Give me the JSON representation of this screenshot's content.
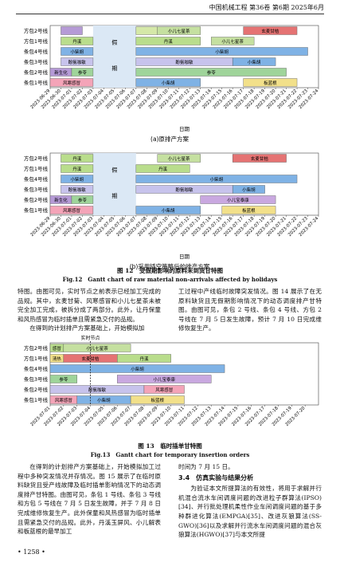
{
  "header": {
    "title": "中国机械工程 第36卷 第6期 2025年6月"
  },
  "figure12": {
    "charts": [
      {
        "type": "gantt",
        "x_label": "日期",
        "caption": "(a)原排产方案",
        "xlim": [
          "2023-06-29",
          "2023-07-24"
        ],
        "xticks": [
          "2023-06-29",
          "2023-06-30",
          "2023-07-01",
          "2023-07-02",
          "2023-07-03",
          "2023-07-04",
          "2023-07-05",
          "2023-07-06",
          "2023-07-07",
          "2023-07-08",
          "2023-07-09",
          "2023-07-10",
          "2023-07-11",
          "2023-07-12",
          "2023-07-13",
          "2023-07-14",
          "2023-07-15",
          "2023-07-16",
          "2023-07-17",
          "2023-07-18",
          "2023-07-19",
          "2023-07-20",
          "2023-07-21",
          "2023-07-22",
          "2023-07-23",
          "2023-07-24"
        ],
        "rows": [
          "方包2号线",
          "方包1号线",
          "条包4号线",
          "条包3号线",
          "条包2号线",
          "条包1号线"
        ],
        "holiday": {
          "text": [
            "假",
            "期"
          ],
          "start": "2023-07-03",
          "end": "2023-07-07"
        },
        "tasks": [
          {
            "row": 0,
            "start": "2023-06-30",
            "end": "2023-07-02",
            "color": "#b59ad6"
          },
          {
            "row": 0,
            "start": "2023-07-07",
            "end": "2023-07-09",
            "color": "#d5e8a8"
          },
          {
            "row": 0,
            "label": "小儿七星茶",
            "start": "2023-07-09",
            "end": "2023-07-13",
            "color": "#c5e0a0"
          },
          {
            "row": 0,
            "label": "玄麦甘桔",
            "start": "2023-07-17",
            "end": "2023-07-22",
            "color": "#e57373"
          },
          {
            "row": 1,
            "label": "丹溪",
            "start": "2023-06-30",
            "end": "2023-07-03",
            "color": "#b9dd8c"
          },
          {
            "row": 1,
            "label": "丹溪",
            "start": "2023-07-07",
            "end": "2023-07-13",
            "color": "#b9dd8c"
          },
          {
            "row": 1,
            "label": "小儿七星茶",
            "start": "2023-07-14",
            "end": "2023-07-18",
            "color": "#c5e0a0"
          },
          {
            "row": 2,
            "label": "小柴胡",
            "start": "2023-06-30",
            "end": "2023-07-03",
            "color": "#7fb2e5"
          },
          {
            "row": 2,
            "label": "小柴胡",
            "start": "2023-07-07",
            "end": "2023-07-23",
            "color": "#7fb2e5"
          },
          {
            "row": 3,
            "label": "酚氨咖敏",
            "start": "2023-06-30",
            "end": "2023-07-03",
            "color": "#c7c3ec"
          },
          {
            "row": 3,
            "label": "酚氨咖敏",
            "start": "2023-07-07",
            "end": "2023-07-16",
            "color": "#c7c3ec"
          },
          {
            "row": 3,
            "label": "小柴胡",
            "start": "2023-07-16",
            "end": "2023-07-20",
            "color": "#7fb2e5"
          },
          {
            "row": 4,
            "label": "新生化",
            "start": "2023-06-29",
            "end": "2023-07-01",
            "color": "#b59ad6"
          },
          {
            "row": 4,
            "label": "参苓",
            "start": "2023-07-01",
            "end": "2023-07-03",
            "color": "#9fd49a"
          },
          {
            "row": 4,
            "label": "参苓",
            "start": "2023-07-07",
            "end": "2023-07-21",
            "color": "#9fd49a"
          },
          {
            "row": 5,
            "label": "风寒感冒",
            "start": "2023-06-29",
            "end": "2023-07-03",
            "color": "#f4a4b8"
          },
          {
            "row": 5,
            "label": "小柴胡",
            "start": "2023-07-07",
            "end": "2023-07-13",
            "color": "#7fb2e5"
          },
          {
            "row": 5,
            "label": "板蓝根",
            "start": "2023-07-17",
            "end": "2023-07-22",
            "color": "#f2e08a"
          }
        ]
      },
      {
        "type": "gantt",
        "x_label": "日期",
        "caption": "(b)采用插空策略后的排产方案",
        "xlim": [
          "2023-06-29",
          "2023-07-24"
        ],
        "xticks": [
          "2023-06-29",
          "2023-06-30",
          "2023-07-01",
          "2023-07-02",
          "2023-07-03",
          "2023-07-04",
          "2023-07-05",
          "2023-07-06",
          "2023-07-07",
          "2023-07-08",
          "2023-07-09",
          "2023-07-10",
          "2023-07-11",
          "2023-07-12",
          "2023-07-13",
          "2023-07-14",
          "2023-07-15",
          "2023-07-16",
          "2023-07-17",
          "2023-07-18",
          "2023-07-19",
          "2023-07-20",
          "2023-07-21",
          "2023-07-22",
          "2023-07-23",
          "2023-07-24"
        ],
        "rows": [
          "方包2号线",
          "方包1号线",
          "条包4号线",
          "条包3号线",
          "条包2号线",
          "条包1号线"
        ],
        "holiday": {
          "text": [
            "假",
            "期"
          ],
          "start": "2023-07-03",
          "end": "2023-07-07"
        },
        "tasks": [
          {
            "row": 0,
            "label": "丹溪",
            "start": "2023-06-30",
            "end": "2023-07-03",
            "color": "#b9dd8c"
          },
          {
            "row": 0,
            "label": "小儿七星茶",
            "start": "2023-07-09",
            "end": "2023-07-13",
            "color": "#c5e0a0"
          },
          {
            "row": 0,
            "label": "玄麦甘桔",
            "start": "2023-07-16",
            "end": "2023-07-21",
            "color": "#e57373"
          },
          {
            "row": 1,
            "label": "丹溪",
            "start": "2023-06-30",
            "end": "2023-07-03",
            "color": "#b9dd8c"
          },
          {
            "row": 1,
            "label": "丹溪",
            "start": "2023-07-07",
            "end": "2023-07-12",
            "color": "#b9dd8c"
          },
          {
            "row": 2,
            "label": "小柴胡",
            "start": "2023-06-30",
            "end": "2023-07-03",
            "color": "#7fb2e5"
          },
          {
            "row": 2,
            "label": "小柴胡",
            "start": "2023-07-07",
            "end": "2023-07-22",
            "color": "#7fb2e5"
          },
          {
            "row": 3,
            "label": "酚氨咖敏",
            "start": "2023-06-30",
            "end": "2023-07-03",
            "color": "#c7c3ec"
          },
          {
            "row": 3,
            "label": "酚氨咖敏",
            "start": "2023-07-07",
            "end": "2023-07-16",
            "color": "#c7c3ec"
          },
          {
            "row": 3,
            "label": "小柴胡",
            "start": "2023-07-16",
            "end": "2023-07-19",
            "color": "#7fb2e5"
          },
          {
            "row": 4,
            "label": "新生化",
            "start": "2023-06-29",
            "end": "2023-07-01",
            "color": "#b59ad6"
          },
          {
            "row": 4,
            "label": "参苓",
            "start": "2023-07-01",
            "end": "2023-07-03",
            "color": "#9fd49a"
          },
          {
            "row": 4,
            "label": "小儿宝泰康",
            "start": "2023-07-13",
            "end": "2023-07-20",
            "color": "#c9a8e0"
          },
          {
            "row": 5,
            "label": "风寒感冒",
            "start": "2023-06-29",
            "end": "2023-07-03",
            "color": "#f4a4b8"
          },
          {
            "row": 5,
            "label": "小柴胡",
            "start": "2023-07-07",
            "end": "2023-07-13",
            "color": "#7fb2e5"
          },
          {
            "row": 5,
            "label": "板蓝根",
            "start": "2023-07-15",
            "end": "2023-07-20",
            "color": "#f2e08a"
          }
        ]
      }
    ],
    "caption_cn": "图 12　受假期影响的原料未到货甘特图",
    "caption_en": "Fig.12　Gantt chart of raw material non-arrivals affected by holidays"
  },
  "text1": {
    "left": [
      "特图。由图可见，实时节点之前表示已经加工完成的品规。其中，玄麦甘菊、风寒感冒和小儿七星茶未被完全加工完成，被拆分成了两部分。此外，让丹保童和风热感冒为临时插单且需紧急交付的品规。",
      "在得到的计划排产方案基础上，开始模拟加"
    ],
    "right": [
      "工过程中产线临时故障突发情况。图 14 展示了在无原料缺货且无假期影响情况下的动态调度排产甘特图。由图可见，条包 2 号线、条包 4 号线、方包 2 号线在 7 月 5 日发生故障，预计 7 月 10 日完成维修恢复生产。"
    ]
  },
  "figure13": {
    "chart": {
      "type": "gantt",
      "x_label": "日期",
      "xlim": [
        "2023-07-01",
        "2023-07-21"
      ],
      "xticks": [
        "2023-07-01",
        "2023-07-02",
        "2023-07-03",
        "2023-07-04",
        "2023-07-05",
        "2023-07-06",
        "2023-07-07",
        "2023-07-08",
        "2023-07-09",
        "2023-07-10",
        "2023-07-11",
        "2023-07-12",
        "2023-07-13",
        "2023-07-14",
        "2023-07-15",
        "2023-07-16",
        "2023-07-17",
        "2023-07-18",
        "2023-07-19",
        "2023-07-20"
      ],
      "rows": [
        "方包2号线",
        "方包1号线",
        "条包4号线",
        "条包3号线",
        "条包2号线",
        "条包1号线"
      ],
      "marker": {
        "label": "实时节点",
        "date": "2023-07-04"
      },
      "tasks": [
        {
          "row": 0,
          "label": "感冒",
          "start": "2023-07-01",
          "end": "2023-07-02",
          "color": "#b9dd8c"
        },
        {
          "row": 0,
          "label": "小儿七星茶",
          "start": "2023-07-02",
          "end": "2023-07-07",
          "color": "#c5e0a0"
        },
        {
          "row": 1,
          "label": "清热",
          "start": "2023-07-01",
          "end": "2023-07-02",
          "color": "#f2e08a"
        },
        {
          "row": 1,
          "label": "玄麦甘桔",
          "start": "2023-07-02",
          "end": "2023-07-06",
          "color": "#e57373"
        },
        {
          "row": 1,
          "label": "丹溪",
          "start": "2023-07-06",
          "end": "2023-07-10",
          "color": "#b9dd8c"
        },
        {
          "row": 2,
          "label": "小柴胡",
          "start": "2023-07-01",
          "end": "2023-07-14",
          "color": "#7fb2e5"
        },
        {
          "row": 3,
          "label": "参苓",
          "start": "2023-07-01",
          "end": "2023-07-03",
          "color": "#9fd49a"
        },
        {
          "row": 3,
          "label": "小儿宝泰康",
          "start": "2023-07-06",
          "end": "2023-07-13",
          "color": "#c9a8e0"
        },
        {
          "row": 4,
          "label": "酚氨咖敏",
          "start": "2023-07-01",
          "end": "2023-07-08",
          "color": "#c7c3ec"
        },
        {
          "row": 4,
          "label": "风寒感冒",
          "start": "2023-07-08",
          "end": "2023-07-11",
          "color": "#f4a4b8"
        },
        {
          "row": 5,
          "label": "风寒感冒",
          "start": "2023-07-01",
          "end": "2023-07-03",
          "color": "#f4a4b8"
        },
        {
          "row": 5,
          "label": "小柴胡",
          "start": "2023-07-03",
          "end": "2023-07-07",
          "color": "#7fb2e5"
        },
        {
          "row": 5,
          "label": "板蓝根",
          "start": "2023-07-07",
          "end": "2023-07-11",
          "color": "#f2e08a"
        }
      ]
    },
    "caption_cn": "图 13　临时插单甘特图",
    "caption_en": "Fig.13　Gantt chart for temporary insertion orders"
  },
  "text2": {
    "left": [
      "在得到的计划排产方案基础上，开始模拟加工过程中多种突发情况并存情况。图 15 展示了在临时原料缺货且受产线故障及临时插单影响情况下的动态调度排产甘特图。由图可见，条包 1 号线、条包 3 号线和方包 5 号线在 7 月 5 日发生故障，并于 7 月 8 日完成维修恢复生产。此外保童和风热感冒为临时插单且需紧急交付的品规。此外，丹溪玉屏风、小儿解表和板蓝根的最早加工"
    ],
    "right": [
      "时间为 7 月 15 日。"
    ],
    "heading": "3.4　仿真实验与结果分析",
    "right2": [
      "为验证本文所提算法的有效性，将用于求解并行机混合流水车间调度问题的改进粒子群算法(IPSO)[34]、并行批处理机柔性作业车间调度问题的基于多种群进化算法(EMPGA)[35]、改进灰狼算法(SS-GWO)[36]以及求解并行流水车间调度问题的混合灰狼算法(HGWO)[37]与本文所提"
    ]
  },
  "footer": {
    "page": "• 1258 •"
  }
}
